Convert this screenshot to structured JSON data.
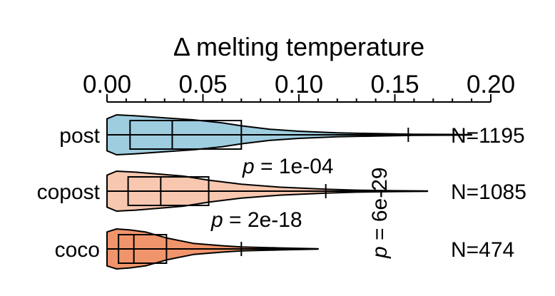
{
  "chart_data": {
    "type": "violin",
    "title": "Δ melting temperature",
    "x_axis": {
      "range": [
        0.0,
        0.2
      ],
      "ticks": [
        0.0,
        0.05,
        0.1,
        0.15,
        0.2
      ],
      "tick_labels": [
        "0.00",
        "0.05",
        "0.10",
        "0.15",
        "0.20"
      ],
      "position": "top"
    },
    "grid": false,
    "categories": [
      "post",
      "copost",
      "coco"
    ],
    "series": [
      {
        "name": "post",
        "color": "#9fcde0",
        "n_label": "N=1195",
        "box": {
          "q1": 0.012,
          "median": 0.034,
          "q3": 0.07,
          "whisker_low": 0.0,
          "whisker_high": 0.157
        },
        "max": 0.19,
        "density": [
          [
            0.0,
            0.8
          ],
          [
            0.005,
            1.0
          ],
          [
            0.015,
            0.95
          ],
          [
            0.03,
            0.85
          ],
          [
            0.045,
            0.75
          ],
          [
            0.06,
            0.6
          ],
          [
            0.07,
            0.45
          ],
          [
            0.085,
            0.28
          ],
          [
            0.1,
            0.18
          ],
          [
            0.12,
            0.1
          ],
          [
            0.14,
            0.06
          ],
          [
            0.16,
            0.03
          ],
          [
            0.19,
            0.01
          ]
        ]
      },
      {
        "name": "copost",
        "color": "#f7c7b0",
        "n_label": "N=1085",
        "box": {
          "q1": 0.011,
          "median": 0.028,
          "q3": 0.053,
          "whisker_low": 0.0,
          "whisker_high": 0.114
        },
        "max": 0.167,
        "density": [
          [
            0.0,
            0.8
          ],
          [
            0.005,
            1.0
          ],
          [
            0.015,
            0.95
          ],
          [
            0.028,
            0.85
          ],
          [
            0.04,
            0.75
          ],
          [
            0.053,
            0.55
          ],
          [
            0.07,
            0.35
          ],
          [
            0.09,
            0.2
          ],
          [
            0.114,
            0.1
          ],
          [
            0.13,
            0.05
          ],
          [
            0.15,
            0.02
          ],
          [
            0.167,
            0.01
          ]
        ]
      },
      {
        "name": "coco",
        "color": "#f0956b",
        "n_label": "N=474",
        "box": {
          "q1": 0.006,
          "median": 0.014,
          "q3": 0.031,
          "whisker_low": 0.0,
          "whisker_high": 0.07
        },
        "max": 0.11,
        "density": [
          [
            0.0,
            0.85
          ],
          [
            0.005,
            1.0
          ],
          [
            0.012,
            0.95
          ],
          [
            0.02,
            0.85
          ],
          [
            0.031,
            0.55
          ],
          [
            0.045,
            0.28
          ],
          [
            0.06,
            0.16
          ],
          [
            0.07,
            0.1
          ],
          [
            0.09,
            0.05
          ],
          [
            0.11,
            0.01
          ]
        ]
      }
    ],
    "annotations": [
      {
        "text": "p = 1e-04",
        "between": [
          "post",
          "copost"
        ]
      },
      {
        "text": "p = 2e-18",
        "between": [
          "copost",
          "coco"
        ]
      },
      {
        "text": "p = 6e-29",
        "between": [
          "post",
          "coco"
        ],
        "rotated": true
      }
    ]
  }
}
